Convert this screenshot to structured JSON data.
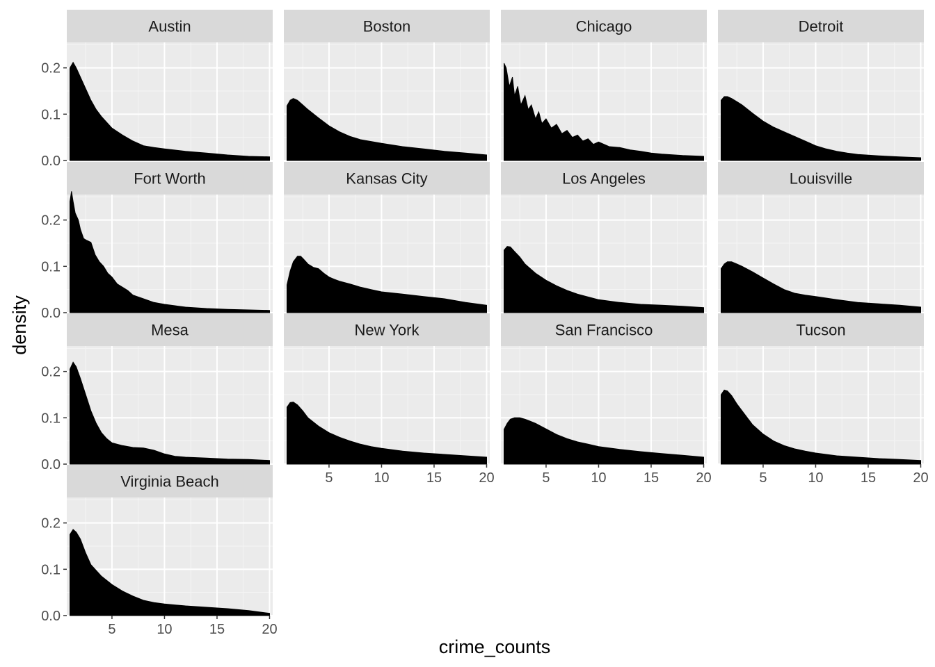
{
  "chart_data": {
    "type": "area",
    "subtype": "faceted-density",
    "xlabel": "crime_counts",
    "ylabel": "density",
    "xlim": [
      0.7,
      20.3
    ],
    "ylim": [
      0,
      0.255
    ],
    "x_ticks": [
      5,
      10,
      15,
      20
    ],
    "x_tick_labels": [
      "5",
      "10",
      "15",
      "20"
    ],
    "y_ticks": [
      0.0,
      0.1,
      0.2
    ],
    "y_tick_labels": [
      "0.0",
      "0.1",
      "0.2"
    ],
    "grid": true,
    "fill_color": "#000000",
    "panel_background": "#ebebeb",
    "strip_background": "#d9d9d9",
    "legend": "none",
    "facets": [
      {
        "name": "Austin",
        "x": [
          1,
          1.3,
          1.6,
          2,
          2.5,
          3,
          3.5,
          4,
          5,
          6,
          7,
          8,
          9,
          10,
          12,
          14,
          16,
          18,
          20
        ],
        "y": [
          0.2,
          0.212,
          0.2,
          0.18,
          0.155,
          0.13,
          0.11,
          0.095,
          0.07,
          0.055,
          0.042,
          0.032,
          0.028,
          0.025,
          0.02,
          0.016,
          0.012,
          0.009,
          0.008
        ]
      },
      {
        "name": "Boston",
        "x": [
          1,
          1.3,
          1.6,
          2,
          2.5,
          3,
          4,
          5,
          6,
          7,
          8,
          10,
          12,
          14,
          16,
          18,
          20
        ],
        "y": [
          0.118,
          0.13,
          0.134,
          0.13,
          0.12,
          0.11,
          0.092,
          0.075,
          0.062,
          0.052,
          0.045,
          0.037,
          0.03,
          0.025,
          0.02,
          0.016,
          0.012
        ]
      },
      {
        "name": "Chicago",
        "x": [
          1,
          1.2,
          1.5,
          1.8,
          2,
          2.3,
          2.6,
          3,
          3.3,
          3.6,
          4,
          4.3,
          4.6,
          5,
          5.5,
          6,
          6.5,
          7,
          7.5,
          8,
          8.5,
          9,
          9.5,
          10,
          11,
          12,
          13,
          14,
          15,
          16,
          18,
          20
        ],
        "y": [
          0.21,
          0.2,
          0.16,
          0.18,
          0.14,
          0.16,
          0.12,
          0.14,
          0.11,
          0.12,
          0.09,
          0.105,
          0.08,
          0.09,
          0.07,
          0.078,
          0.058,
          0.065,
          0.05,
          0.055,
          0.042,
          0.047,
          0.035,
          0.04,
          0.03,
          0.028,
          0.023,
          0.02,
          0.016,
          0.014,
          0.011,
          0.009
        ]
      },
      {
        "name": "Detroit",
        "x": [
          1,
          1.3,
          1.6,
          2,
          2.5,
          3,
          4,
          5,
          6,
          7,
          8,
          9,
          10,
          11,
          12,
          13,
          14,
          16,
          18,
          20
        ],
        "y": [
          0.13,
          0.138,
          0.138,
          0.134,
          0.127,
          0.12,
          0.102,
          0.085,
          0.072,
          0.062,
          0.052,
          0.042,
          0.032,
          0.025,
          0.02,
          0.016,
          0.013,
          0.01,
          0.008,
          0.006
        ]
      },
      {
        "name": "Fort Worth",
        "x": [
          1,
          1.15,
          1.3,
          1.5,
          1.8,
          2,
          2.3,
          2.6,
          3,
          3.4,
          3.8,
          4.2,
          4.6,
          5,
          5.5,
          6,
          6.5,
          7,
          8,
          9,
          10,
          11,
          12,
          14,
          16,
          18,
          20
        ],
        "y": [
          0.24,
          0.262,
          0.24,
          0.215,
          0.2,
          0.18,
          0.16,
          0.156,
          0.152,
          0.125,
          0.11,
          0.1,
          0.085,
          0.077,
          0.062,
          0.055,
          0.048,
          0.038,
          0.03,
          0.022,
          0.018,
          0.015,
          0.012,
          0.009,
          0.007,
          0.006,
          0.005
        ]
      },
      {
        "name": "Kansas City",
        "x": [
          1,
          1.3,
          1.6,
          2,
          2.3,
          2.6,
          3,
          3.5,
          4,
          4.5,
          5,
          5.5,
          6,
          7,
          8,
          9,
          10,
          12,
          14,
          16,
          18,
          20
        ],
        "y": [
          0.06,
          0.09,
          0.11,
          0.122,
          0.122,
          0.115,
          0.105,
          0.098,
          0.095,
          0.085,
          0.077,
          0.072,
          0.068,
          0.062,
          0.055,
          0.05,
          0.045,
          0.04,
          0.035,
          0.03,
          0.022,
          0.016
        ]
      },
      {
        "name": "Los Angeles",
        "x": [
          1,
          1.3,
          1.6,
          2,
          2.5,
          3,
          4,
          5,
          6,
          7,
          8,
          9,
          10,
          12,
          14,
          16,
          18,
          20
        ],
        "y": [
          0.135,
          0.143,
          0.142,
          0.132,
          0.12,
          0.105,
          0.085,
          0.07,
          0.058,
          0.048,
          0.04,
          0.034,
          0.028,
          0.022,
          0.018,
          0.016,
          0.014,
          0.011
        ]
      },
      {
        "name": "Louisville",
        "x": [
          1,
          1.3,
          1.6,
          2,
          2.5,
          3,
          4,
          5,
          6,
          7,
          8,
          9,
          10,
          12,
          14,
          16,
          18,
          20
        ],
        "y": [
          0.095,
          0.105,
          0.11,
          0.11,
          0.105,
          0.1,
          0.088,
          0.075,
          0.062,
          0.05,
          0.042,
          0.038,
          0.035,
          0.028,
          0.022,
          0.019,
          0.016,
          0.012
        ]
      },
      {
        "name": "Mesa",
        "x": [
          1,
          1.3,
          1.6,
          2,
          2.5,
          3,
          3.5,
          4,
          4.5,
          5,
          6,
          7,
          8,
          9,
          10,
          11,
          12,
          14,
          16,
          18,
          20
        ],
        "y": [
          0.205,
          0.22,
          0.21,
          0.185,
          0.15,
          0.115,
          0.088,
          0.068,
          0.055,
          0.046,
          0.04,
          0.036,
          0.035,
          0.03,
          0.022,
          0.017,
          0.015,
          0.013,
          0.011,
          0.01,
          0.008
        ]
      },
      {
        "name": "New York",
        "x": [
          1,
          1.3,
          1.6,
          2,
          2.5,
          3,
          4,
          5,
          6,
          7,
          8,
          9,
          10,
          12,
          14,
          16,
          18,
          20
        ],
        "y": [
          0.123,
          0.133,
          0.134,
          0.128,
          0.115,
          0.1,
          0.082,
          0.068,
          0.058,
          0.05,
          0.043,
          0.038,
          0.034,
          0.028,
          0.024,
          0.021,
          0.018,
          0.015
        ]
      },
      {
        "name": "San Francisco",
        "x": [
          1,
          1.3,
          1.6,
          2,
          2.5,
          3,
          4,
          5,
          6,
          7,
          8,
          9,
          10,
          12,
          14,
          16,
          18,
          20
        ],
        "y": [
          0.075,
          0.088,
          0.097,
          0.1,
          0.1,
          0.097,
          0.088,
          0.076,
          0.064,
          0.055,
          0.048,
          0.043,
          0.038,
          0.032,
          0.027,
          0.023,
          0.019,
          0.015
        ]
      },
      {
        "name": "Tucson",
        "x": [
          1,
          1.3,
          1.6,
          2,
          2.5,
          3,
          4,
          5,
          6,
          7,
          8,
          9,
          10,
          12,
          14,
          16,
          18,
          20
        ],
        "y": [
          0.15,
          0.16,
          0.158,
          0.148,
          0.13,
          0.115,
          0.085,
          0.065,
          0.05,
          0.04,
          0.033,
          0.028,
          0.024,
          0.018,
          0.015,
          0.012,
          0.01,
          0.008
        ]
      },
      {
        "name": "Virginia Beach",
        "x": [
          1,
          1.3,
          1.6,
          2,
          2.5,
          3,
          4,
          5,
          6,
          7,
          8,
          9,
          10,
          12,
          14,
          16,
          18,
          20
        ],
        "y": [
          0.175,
          0.186,
          0.18,
          0.165,
          0.135,
          0.11,
          0.085,
          0.067,
          0.053,
          0.042,
          0.033,
          0.028,
          0.025,
          0.021,
          0.018,
          0.015,
          0.011,
          0.005
        ]
      }
    ]
  }
}
